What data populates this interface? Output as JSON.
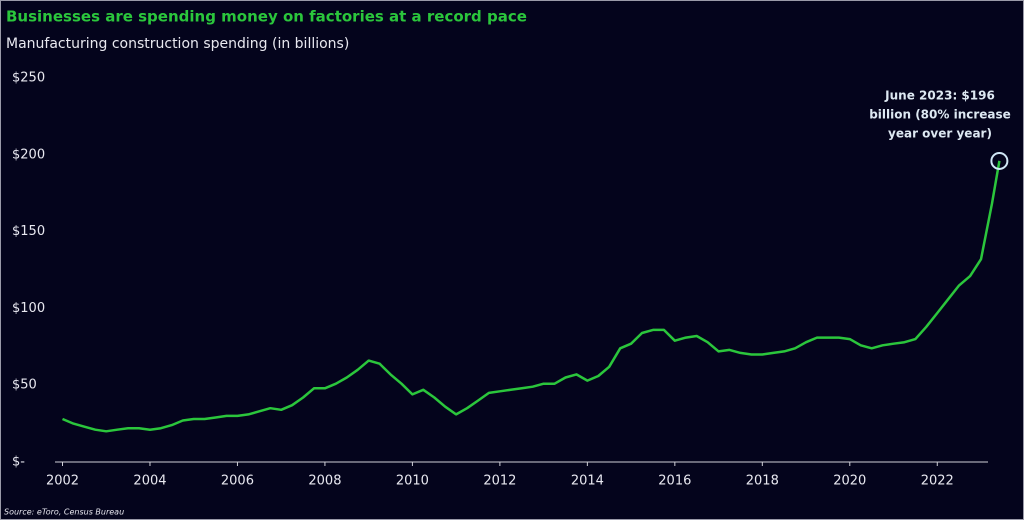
{
  "chart_data": {
    "type": "line",
    "title": "Businesses are spending money on factories at a record pace",
    "subtitle": "Manufacturing construction spending (in billions)",
    "source": "Source: eToro, Census Bureau",
    "annotation": [
      "June 2023: $196",
      "billion (80% increase",
      "year over year)"
    ],
    "color": "#2bc63c",
    "x": [
      2002.0,
      2002.25,
      2002.5,
      2002.75,
      2003.0,
      2003.25,
      2003.5,
      2003.75,
      2004.0,
      2004.25,
      2004.5,
      2004.75,
      2005.0,
      2005.25,
      2005.5,
      2005.75,
      2006.0,
      2006.25,
      2006.5,
      2006.75,
      2007.0,
      2007.25,
      2007.5,
      2007.75,
      2008.0,
      2008.25,
      2008.5,
      2008.75,
      2009.0,
      2009.25,
      2009.5,
      2009.75,
      2010.0,
      2010.25,
      2010.5,
      2010.75,
      2011.0,
      2011.25,
      2011.5,
      2011.75,
      2012.0,
      2012.25,
      2012.5,
      2012.75,
      2013.0,
      2013.25,
      2013.5,
      2013.75,
      2014.0,
      2014.25,
      2014.5,
      2014.75,
      2015.0,
      2015.25,
      2015.5,
      2015.75,
      2016.0,
      2016.25,
      2016.5,
      2016.75,
      2017.0,
      2017.25,
      2017.5,
      2017.75,
      2018.0,
      2018.25,
      2018.5,
      2018.75,
      2019.0,
      2019.25,
      2019.5,
      2019.75,
      2020.0,
      2020.25,
      2020.5,
      2020.75,
      2021.0,
      2021.25,
      2021.5,
      2021.75,
      2022.0,
      2022.25,
      2022.5,
      2022.75,
      2023.0,
      2023.25,
      2023.42
    ],
    "values": [
      28,
      25,
      23,
      21,
      20,
      21,
      22,
      22,
      21,
      22,
      24,
      27,
      28,
      28,
      29,
      30,
      30,
      31,
      33,
      35,
      34,
      37,
      42,
      48,
      48,
      51,
      55,
      60,
      66,
      64,
      57,
      51,
      44,
      47,
      42,
      36,
      31,
      35,
      40,
      45,
      46,
      47,
      48,
      49,
      51,
      51,
      55,
      57,
      53,
      56,
      62,
      74,
      77,
      84,
      86,
      86,
      79,
      81,
      82,
      78,
      72,
      73,
      71,
      70,
      70,
      71,
      72,
      74,
      78,
      81,
      81,
      81,
      80,
      76,
      74,
      76,
      77,
      78,
      80,
      88,
      97,
      106,
      115,
      121,
      132,
      168,
      196
    ],
    "xlim": [
      2001.6,
      2023.8
    ],
    "xticks": [
      2002,
      2004,
      2006,
      2008,
      2010,
      2012,
      2014,
      2016,
      2018,
      2020,
      2022
    ],
    "ylim": [
      0,
      250
    ],
    "yticks": [
      {
        "value": 0,
        "label": "$-"
      },
      {
        "value": 50,
        "label": "$50"
      },
      {
        "value": 100,
        "label": "$100"
      },
      {
        "value": 150,
        "label": "$150"
      },
      {
        "value": 200,
        "label": "$200"
      },
      {
        "value": 250,
        "label": "$250"
      }
    ]
  }
}
